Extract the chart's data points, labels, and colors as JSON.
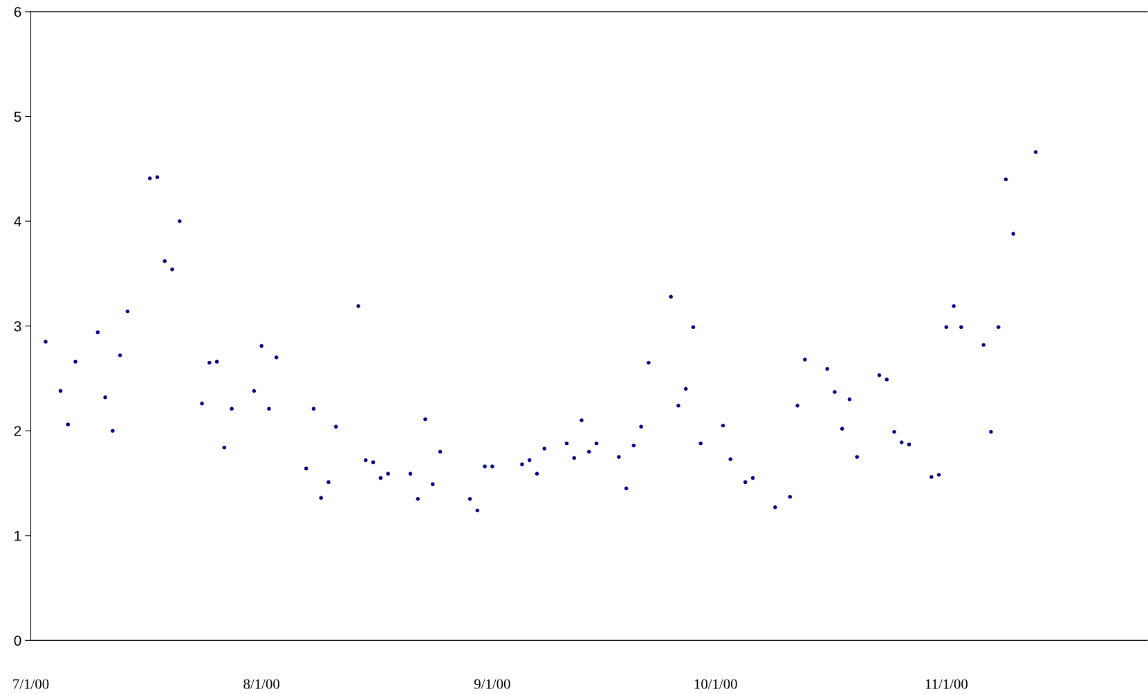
{
  "chart_data": {
    "type": "scatter",
    "x": [
      "2000-07-03",
      "2000-07-05",
      "2000-07-06",
      "2000-07-07",
      "2000-07-10",
      "2000-07-11",
      "2000-07-12",
      "2000-07-13",
      "2000-07-14",
      "2000-07-17",
      "2000-07-18",
      "2000-07-19",
      "2000-07-20",
      "2000-07-21",
      "2000-07-24",
      "2000-07-25",
      "2000-07-26",
      "2000-07-27",
      "2000-07-28",
      "2000-07-31",
      "2000-08-01",
      "2000-08-02",
      "2000-08-03",
      "2000-08-07",
      "2000-08-08",
      "2000-08-09",
      "2000-08-10",
      "2000-08-11",
      "2000-08-14",
      "2000-08-15",
      "2000-08-16",
      "2000-08-17",
      "2000-08-18",
      "2000-08-21",
      "2000-08-22",
      "2000-08-23",
      "2000-08-24",
      "2000-08-25",
      "2000-08-29",
      "2000-08-30",
      "2000-08-31",
      "2000-09-01",
      "2000-09-05",
      "2000-09-06",
      "2000-09-07",
      "2000-09-08",
      "2000-09-11",
      "2000-09-12",
      "2000-09-13",
      "2000-09-14",
      "2000-09-15",
      "2000-09-18",
      "2000-09-19",
      "2000-09-20",
      "2000-09-21",
      "2000-09-22",
      "2000-09-25",
      "2000-09-26",
      "2000-09-27",
      "2000-09-28",
      "2000-09-29",
      "2000-10-02",
      "2000-10-03",
      "2000-10-05",
      "2000-10-06",
      "2000-10-09",
      "2000-10-11",
      "2000-10-12",
      "2000-10-13",
      "2000-10-16",
      "2000-10-17",
      "2000-10-18",
      "2000-10-19",
      "2000-10-20",
      "2000-10-23",
      "2000-10-24",
      "2000-10-25",
      "2000-10-26",
      "2000-10-27",
      "2000-10-30",
      "2000-10-31",
      "2000-11-01",
      "2000-11-02",
      "2000-11-03",
      "2000-11-06",
      "2000-11-07",
      "2000-11-08",
      "2000-11-09",
      "2000-11-10",
      "2000-11-13"
    ],
    "series": [
      {
        "color": "#000080",
        "values": [
          2.85,
          2.38,
          2.06,
          2.66,
          2.94,
          2.32,
          2.0,
          2.72,
          3.14,
          4.41,
          4.42,
          3.62,
          3.54,
          4.0,
          2.26,
          2.65,
          2.66,
          1.84,
          2.21,
          2.38,
          2.81,
          2.21,
          2.7,
          1.64,
          2.21,
          1.36,
          1.51,
          2.04,
          3.19,
          1.72,
          1.7,
          1.55,
          1.59,
          1.59,
          1.35,
          2.11,
          1.49,
          1.8,
          1.35,
          1.24,
          1.66,
          1.66,
          1.68,
          1.72,
          1.59,
          1.83,
          1.88,
          1.74,
          2.1,
          1.8,
          1.88,
          1.75,
          1.45,
          1.86,
          2.04,
          2.65,
          3.28,
          2.24,
          2.4,
          2.99,
          1.88,
          2.05,
          1.73,
          1.51,
          1.55,
          1.27,
          1.37,
          2.24,
          2.68,
          2.59,
          2.37,
          2.02,
          2.3,
          1.75,
          2.53,
          2.49,
          1.99,
          1.89,
          1.87,
          1.56,
          1.58,
          2.99,
          3.19,
          2.99,
          2.82,
          1.99,
          2.99,
          4.4,
          3.88,
          4.66
        ]
      }
    ],
    "xlim": [
      "2000-07-01",
      "2000-11-28"
    ],
    "xticks": [
      {
        "value": "2000-07-01",
        "label": "7/1/00"
      },
      {
        "value": "2000-08-01",
        "label": "8/1/00"
      },
      {
        "value": "2000-09-01",
        "label": "9/1/00"
      },
      {
        "value": "2000-10-01",
        "label": "10/1/00"
      },
      {
        "value": "2000-11-01",
        "label": "11/1/00"
      }
    ],
    "ylim": [
      0,
      6
    ],
    "yticks": [
      0,
      1,
      2,
      3,
      4,
      5,
      6
    ],
    "grid": false
  }
}
